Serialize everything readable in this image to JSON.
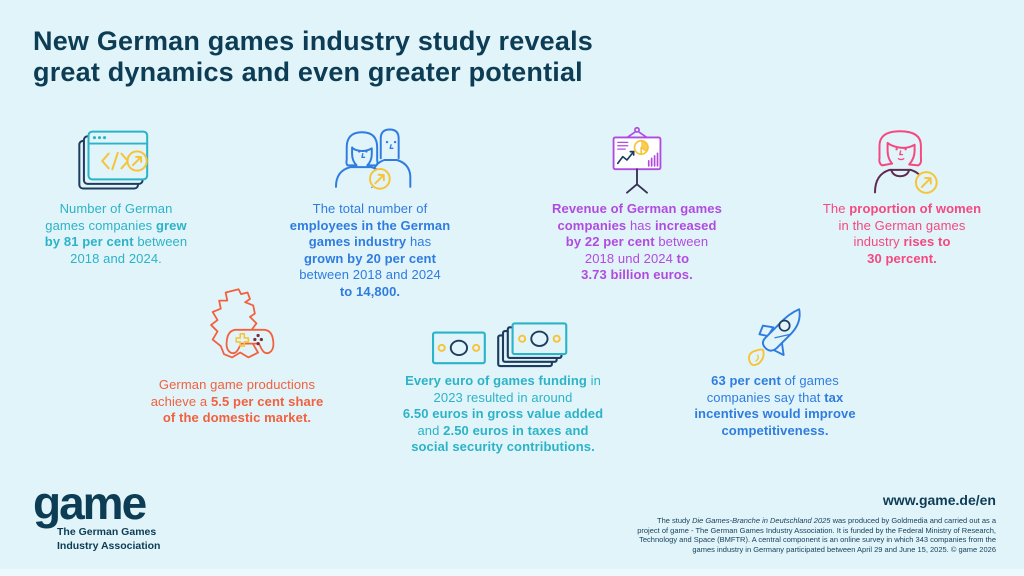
{
  "palette": {
    "background": "#e1f4fa",
    "headline_navy": "#0d3c55",
    "teal": "#2bb3c7",
    "blue": "#2f7ce0",
    "purple": "#b04be0",
    "pink": "#f4487f",
    "orange": "#f2603d",
    "yellow": "#f7c437",
    "icon_navy": "#1e3c5f",
    "plum": "#5d2a50"
  },
  "title": {
    "line1": "New German games industry study reveals",
    "line2": "great dynamics and even greater potential"
  },
  "stats": [
    {
      "icon": "code-window-icon",
      "color": "teal",
      "lines": [
        [
          {
            "t": "Number of German"
          }
        ],
        [
          {
            "t": "games companies "
          },
          {
            "t": "grew",
            "b": 1
          }
        ],
        [
          {
            "t": "by 81 per cent",
            "b": 1
          },
          {
            "t": " between"
          }
        ],
        [
          {
            "t": "2018 and 2024."
          }
        ]
      ]
    },
    {
      "icon": "two-people-icon",
      "color": "blue",
      "lines": [
        [
          {
            "t": "The total number of"
          }
        ],
        [
          {
            "t": "employees in the German",
            "b": 1
          }
        ],
        [
          {
            "t": "games industry",
            "b": 1
          },
          {
            "t": " has"
          }
        ],
        [
          {
            "t": "grown by 20 per cent",
            "b": 1
          }
        ],
        [
          {
            "t": "between 2018 and 2024"
          }
        ],
        [
          {
            "t": "to 14,800.",
            "b": 1
          }
        ]
      ]
    },
    {
      "icon": "presentation-chart-icon",
      "color": "purple",
      "lines": [
        [
          {
            "t": "Revenue of German games",
            "b": 1
          }
        ],
        [
          {
            "t": "companies",
            "b": 1
          },
          {
            "t": " has "
          },
          {
            "t": "increased",
            "b": 1
          }
        ],
        [
          {
            "t": "by 22 per cent",
            "b": 1
          },
          {
            "t": " between"
          }
        ],
        [
          {
            "t": "2018 und 2024 "
          },
          {
            "t": "to",
            "b": 1
          }
        ],
        [
          {
            "t": "3.73 billion euros.",
            "b": 1
          }
        ]
      ]
    },
    {
      "icon": "woman-icon",
      "color": "pink",
      "lines": [
        [
          {
            "t": "The "
          },
          {
            "t": "proportion of women",
            "b": 1
          }
        ],
        [
          {
            "t": "in the German games"
          }
        ],
        [
          {
            "t": "industry "
          },
          {
            "t": "rises to",
            "b": 1
          }
        ],
        [
          {
            "t": "30 percent.",
            "b": 1
          }
        ]
      ]
    },
    {
      "icon": "germany-map-controller-icon",
      "color": "orange",
      "lines": [
        [
          {
            "t": "German game productions"
          }
        ],
        [
          {
            "t": "achieve a "
          },
          {
            "t": "5.5 per cent share",
            "b": 1
          }
        ],
        [
          {
            "t": "of the domestic market.",
            "b": 1
          }
        ]
      ]
    },
    {
      "icon": "banknotes-icon",
      "color": "teal",
      "lines": [
        [
          {
            "t": "Every euro of games funding",
            "b": 1
          },
          {
            "t": " in"
          }
        ],
        [
          {
            "t": "2023 resulted in around"
          }
        ],
        [
          {
            "t": "6.50 euros in gross value added",
            "b": 1
          }
        ],
        [
          {
            "t": "and "
          },
          {
            "t": "2.50 euros in taxes and",
            "b": 1
          }
        ],
        [
          {
            "t": "social security contributions.",
            "b": 1
          }
        ]
      ]
    },
    {
      "icon": "rocket-icon",
      "color": "blue",
      "lines": [
        [
          {
            "t": "63 per cent",
            "b": 1
          },
          {
            "t": " of games"
          }
        ],
        [
          {
            "t": "companies say that "
          },
          {
            "t": "tax",
            "b": 1
          }
        ],
        [
          {
            "t": "incentives would improve",
            "b": 1
          }
        ],
        [
          {
            "t": "competitiveness.",
            "b": 1
          }
        ]
      ]
    }
  ],
  "footer": {
    "logo_text": "game",
    "logo_subtitle_line1": "The German Games",
    "logo_subtitle_line2": "Industry Association",
    "website": "www.game.de/en",
    "fine_print_lines": [
      [
        {
          "t": "The study "
        },
        {
          "t": "Die Games-Branche in Deutschland 2025",
          "i": 1
        },
        {
          "t": " was produced by Goldmedia and carried out as a"
        }
      ],
      [
        {
          "t": "project of game - The German Games Industry Association. It is funded by the Federal Ministry of Research,"
        }
      ],
      [
        {
          "t": "Technology and Space (BMFTR). A central component is an online survey in which 343 companies from the"
        }
      ],
      [
        {
          "t": "games industry in Germany participated between April 29 and June 15, 2025. © game 2026"
        }
      ]
    ]
  }
}
